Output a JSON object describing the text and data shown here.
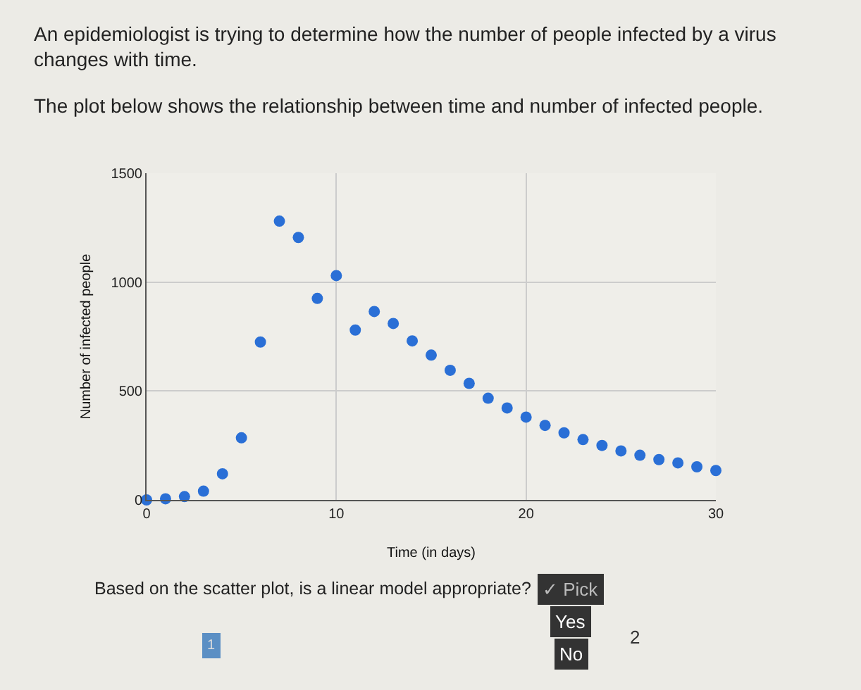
{
  "chart_data": {
    "type": "scatter",
    "title": "An epidemiologist is trying to determine how the number of people infected by a virus changes with time.",
    "subtitle": "The plot below shows the relationship between time and number of infected people.",
    "xlabel": "Time (in days)",
    "ylabel": "Number of infected people",
    "x": [
      0,
      1,
      2,
      3,
      4,
      5,
      6,
      7,
      8,
      9,
      10,
      11,
      12,
      13,
      14,
      15,
      16,
      17,
      18,
      19,
      20,
      21,
      22,
      23,
      24,
      25,
      26,
      27,
      28,
      29,
      30
    ],
    "series": [
      {
        "color": "#2a6fd6",
        "values": [
          0,
          5,
          15,
          40,
          120,
          285,
          725,
          1280,
          1205,
          925,
          1030,
          780,
          865,
          810,
          730,
          665,
          595,
          535,
          467,
          422,
          380,
          342,
          308,
          277,
          250,
          225,
          205,
          185,
          170,
          152,
          135
        ]
      }
    ],
    "xlim": [
      0,
      30
    ],
    "xticks": [
      0,
      10,
      20,
      30
    ],
    "ylim": [
      0,
      1500
    ],
    "yticks": [
      0,
      500,
      1000,
      1500
    ],
    "grid": true,
    "marker": "circle",
    "annotations": [
      "Based on the scatter plot, is a linear model appropriate?",
      "✓ Pick",
      "Yes",
      "No",
      "1",
      "2"
    ]
  }
}
